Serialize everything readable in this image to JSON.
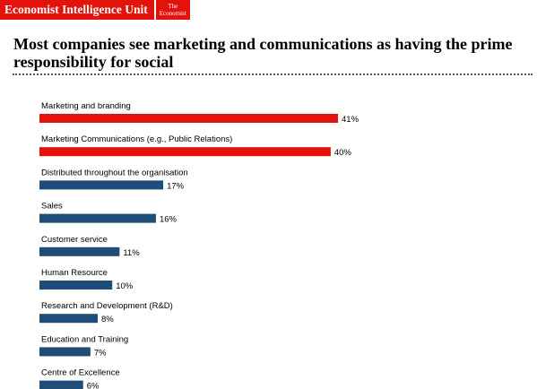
{
  "brand": {
    "name": "Economist Intelligence Unit",
    "logo_line1": "The",
    "logo_line2": "Economist"
  },
  "chart_data": {
    "type": "bar",
    "orientation": "horizontal",
    "title": "Most companies see marketing and communications as having the prime responsibility for social",
    "categories": [
      "Marketing and branding",
      "Marketing Communications (e.g., Public Relations)",
      "Distributed throughout the organisation",
      "Sales",
      "Customer service",
      "Human Resource",
      "Research and Development (R&D)",
      "Education and Training",
      "Centre of Excellence"
    ],
    "values": [
      41,
      40,
      17,
      16,
      11,
      10,
      8,
      7,
      6
    ],
    "value_labels": [
      "41%",
      "40%",
      "17%",
      "16%",
      "11%",
      "10%",
      "8%",
      "7%",
      "6%"
    ],
    "bar_colors": [
      "#e3120b",
      "#e3120b",
      "#1e4d78",
      "#1e4d78",
      "#1e4d78",
      "#1e4d78",
      "#1e4d78",
      "#1e4d78",
      "#1e4d78"
    ],
    "xlim": [
      0,
      41
    ],
    "grid": false
  }
}
